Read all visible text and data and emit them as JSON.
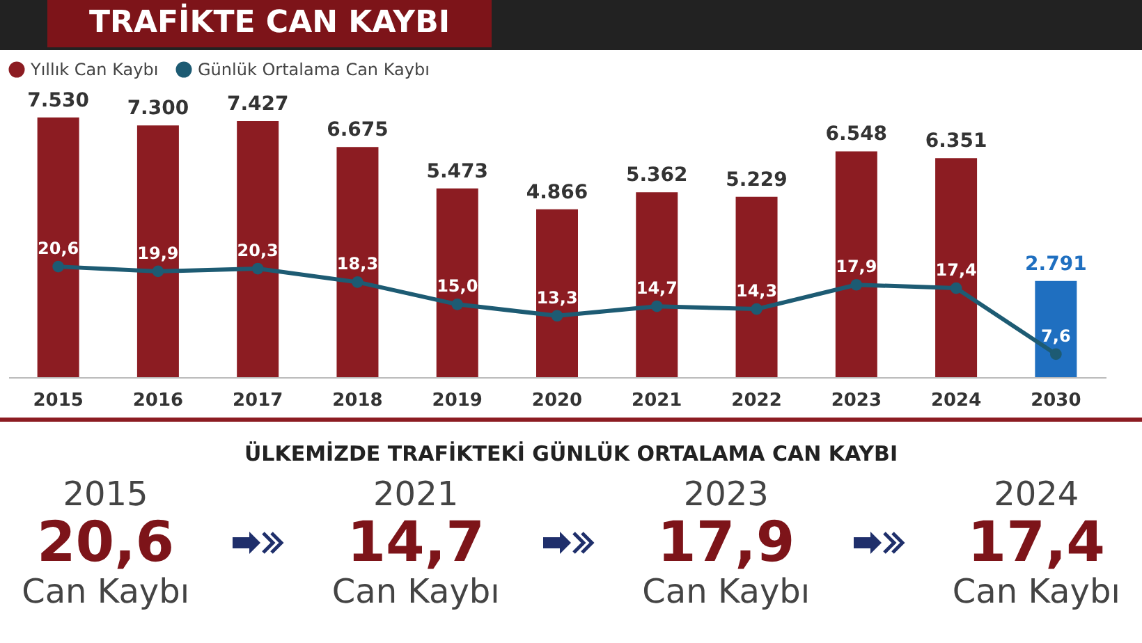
{
  "chart_data": {
    "type": "bar",
    "title": "TRAFİKTE CAN KAYBI",
    "categories": [
      "2015",
      "2016",
      "2017",
      "2018",
      "2019",
      "2020",
      "2021",
      "2022",
      "2023",
      "2024",
      "2030"
    ],
    "series": [
      {
        "name": "Yıllık Can Kaybı",
        "color": "#8c1c22",
        "colors": [
          "#8c1c22",
          "#8c1c22",
          "#8c1c22",
          "#8c1c22",
          "#8c1c22",
          "#8c1c22",
          "#8c1c22",
          "#8c1c22",
          "#8c1c22",
          "#8c1c22",
          "#1f6fc0"
        ],
        "values": [
          7530,
          7300,
          7427,
          6675,
          5473,
          4866,
          5362,
          5229,
          6548,
          6351,
          2791
        ],
        "value_labels": [
          "7.530",
          "7.300",
          "7.427",
          "6.675",
          "5.473",
          "4.866",
          "5.362",
          "5.229",
          "6.548",
          "6.351",
          "2.791"
        ]
      },
      {
        "name": "Günlük Ortalama Can Kaybı",
        "type": "line",
        "axis": "y2",
        "color": "#1d5b73",
        "values": [
          20.6,
          19.9,
          20.3,
          18.3,
          15.0,
          13.3,
          14.7,
          14.3,
          17.9,
          17.4,
          7.6
        ],
        "value_labels": [
          "20,6",
          "19,9",
          "20,3",
          "18,3",
          "15,0",
          "13,3",
          "14,7",
          "14,3",
          "17,9",
          "17,4",
          "7,6"
        ]
      }
    ],
    "legend": "top",
    "marker": "circle",
    "line_style": "solid",
    "grid": false,
    "annotations": [
      "ÜLKEMİZDE TRAFİKTEKİ GÜNLÜK ORTALAMA CAN KAYBI",
      "2015",
      "20,6",
      "Can Kaybı",
      "2021",
      "14,7",
      "Can Kaybı",
      "2023",
      "17,9",
      "Can Kaybı",
      "2024",
      "17,4",
      "Can Kaybı"
    ]
  }
}
